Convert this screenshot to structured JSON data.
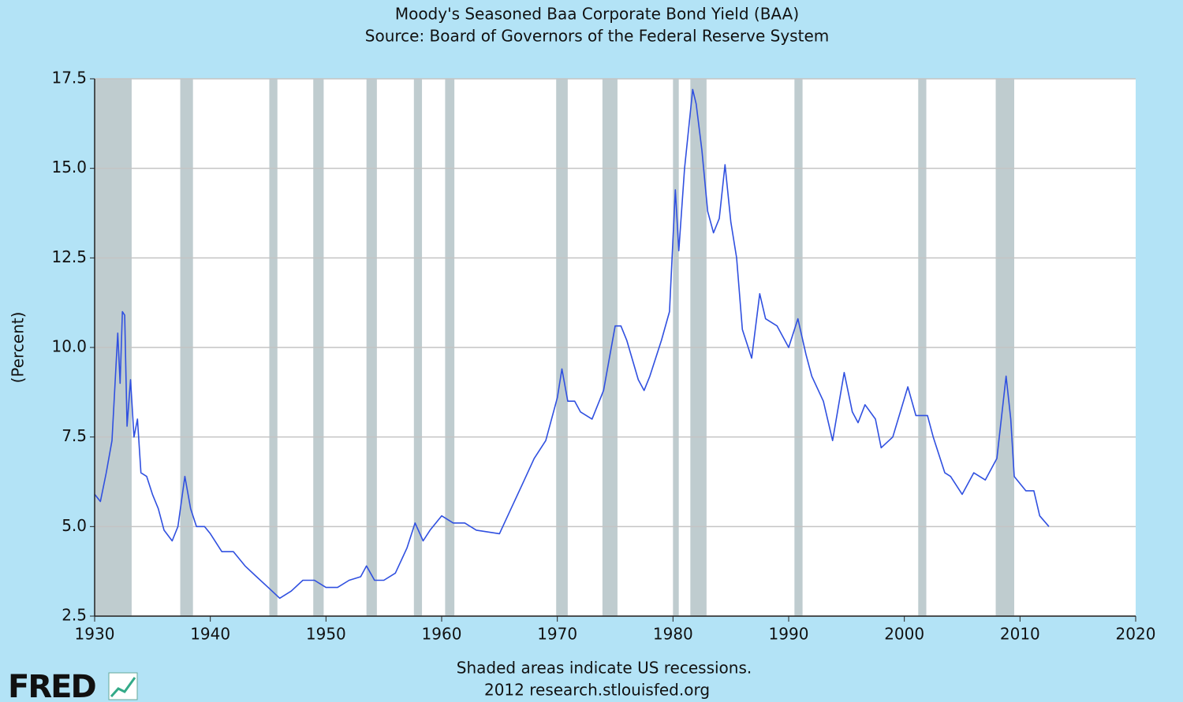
{
  "chart_data": {
    "type": "line",
    "title": "Moody's Seasoned Baa Corporate Bond Yield (BAA)",
    "subtitle": "Source: Board of Governors of the Federal Reserve System",
    "y_label": "(Percent)",
    "note": "Shaded areas indicate US recessions.",
    "footer": "2012 research.stlouisfed.org",
    "logo": "FRED",
    "xlim": [
      1930,
      2020
    ],
    "xticks": [
      1930,
      1940,
      1950,
      1960,
      1970,
      1980,
      1990,
      2000,
      2010,
      2020
    ],
    "ylim": [
      2.5,
      17.5
    ],
    "yticks": [
      2.5,
      {
        "value": 5,
        "label": "5.0"
      },
      7.5,
      {
        "value": 10,
        "label": "10.0"
      },
      12.5,
      {
        "value": 15,
        "label": "15.0"
      },
      17.5
    ],
    "grid": true,
    "recession_color": "#bfcccf",
    "recessions": [
      [
        1929.6,
        1933.2
      ],
      [
        1937.4,
        1938.5
      ],
      [
        1945.1,
        1945.8
      ],
      [
        1948.9,
        1949.8
      ],
      [
        1953.5,
        1954.4
      ],
      [
        1957.6,
        1958.3
      ],
      [
        1960.3,
        1961.1
      ],
      [
        1969.9,
        1970.9
      ],
      [
        1973.9,
        1975.2
      ],
      [
        1980.0,
        1980.5
      ],
      [
        1981.5,
        1982.9
      ],
      [
        1990.5,
        1991.2
      ],
      [
        2001.2,
        2001.9
      ],
      [
        2007.9,
        2009.5
      ]
    ],
    "x": [
      1930,
      1930.5,
      1931,
      1931.5,
      1932,
      1932.2,
      1932.4,
      1932.6,
      1932.8,
      1933.1,
      1933.4,
      1933.7,
      1934,
      1934.5,
      1935,
      1935.5,
      1936,
      1936.7,
      1937.2,
      1937.8,
      1938.3,
      1938.8,
      1939.5,
      1940,
      1941,
      1942,
      1943,
      1944,
      1945,
      1946,
      1947,
      1948,
      1949,
      1950,
      1951,
      1952,
      1953,
      1953.5,
      1954.2,
      1955,
      1956,
      1957,
      1957.7,
      1958.4,
      1959,
      1960,
      1961,
      1962,
      1963,
      1964,
      1965,
      1966,
      1967,
      1968,
      1969,
      1970,
      1970.4,
      1970.9,
      1971.5,
      1972,
      1973,
      1974,
      1975,
      1975.5,
      1976,
      1977,
      1977.5,
      1978,
      1979,
      1979.7,
      1980.2,
      1980.5,
      1981,
      1981.7,
      1982,
      1982.5,
      1983,
      1983.5,
      1984,
      1984.5,
      1985,
      1985.5,
      1986,
      1986.8,
      1987.5,
      1988,
      1989,
      1990,
      1990.8,
      1991.5,
      1992,
      1993,
      1993.8,
      1994.8,
      1995.5,
      1996,
      1996.6,
      1997.5,
      1998,
      1999,
      2000.3,
      2001,
      2002,
      2002.5,
      2003.5,
      2004,
      2005,
      2006,
      2007,
      2008,
      2008.8,
      2009.2,
      2009.5,
      2010.5,
      2011.2,
      2011.7,
      2012.5
    ],
    "series": [
      {
        "name": "BAA",
        "color": "#3050e0",
        "values": [
          5.9,
          5.7,
          6.5,
          7.4,
          10.4,
          9.0,
          11.0,
          10.9,
          7.8,
          9.1,
          7.5,
          8.0,
          6.5,
          6.4,
          5.9,
          5.5,
          4.9,
          4.6,
          5.0,
          6.4,
          5.5,
          5.0,
          5.0,
          4.8,
          4.3,
          4.3,
          3.9,
          3.6,
          3.3,
          3.0,
          3.2,
          3.5,
          3.5,
          3.3,
          3.3,
          3.5,
          3.6,
          3.9,
          3.5,
          3.5,
          3.7,
          4.4,
          5.1,
          4.6,
          4.9,
          5.3,
          5.1,
          5.1,
          4.9,
          4.85,
          4.8,
          5.5,
          6.2,
          6.9,
          7.4,
          8.6,
          9.4,
          8.5,
          8.5,
          8.2,
          8.0,
          8.8,
          10.6,
          10.6,
          10.2,
          9.1,
          8.8,
          9.2,
          10.2,
          11.0,
          14.4,
          12.7,
          15.0,
          17.2,
          16.8,
          15.5,
          13.8,
          13.2,
          13.6,
          15.1,
          13.5,
          12.5,
          10.5,
          9.7,
          11.5,
          10.8,
          10.6,
          10.0,
          10.8,
          9.8,
          9.2,
          8.5,
          7.4,
          9.3,
          8.2,
          7.9,
          8.4,
          8.0,
          7.2,
          7.5,
          8.9,
          8.1,
          8.1,
          7.5,
          6.5,
          6.4,
          5.9,
          6.5,
          6.3,
          6.9,
          9.2,
          8.0,
          6.4,
          6.0,
          6.0,
          5.3,
          5.0
        ]
      }
    ]
  }
}
